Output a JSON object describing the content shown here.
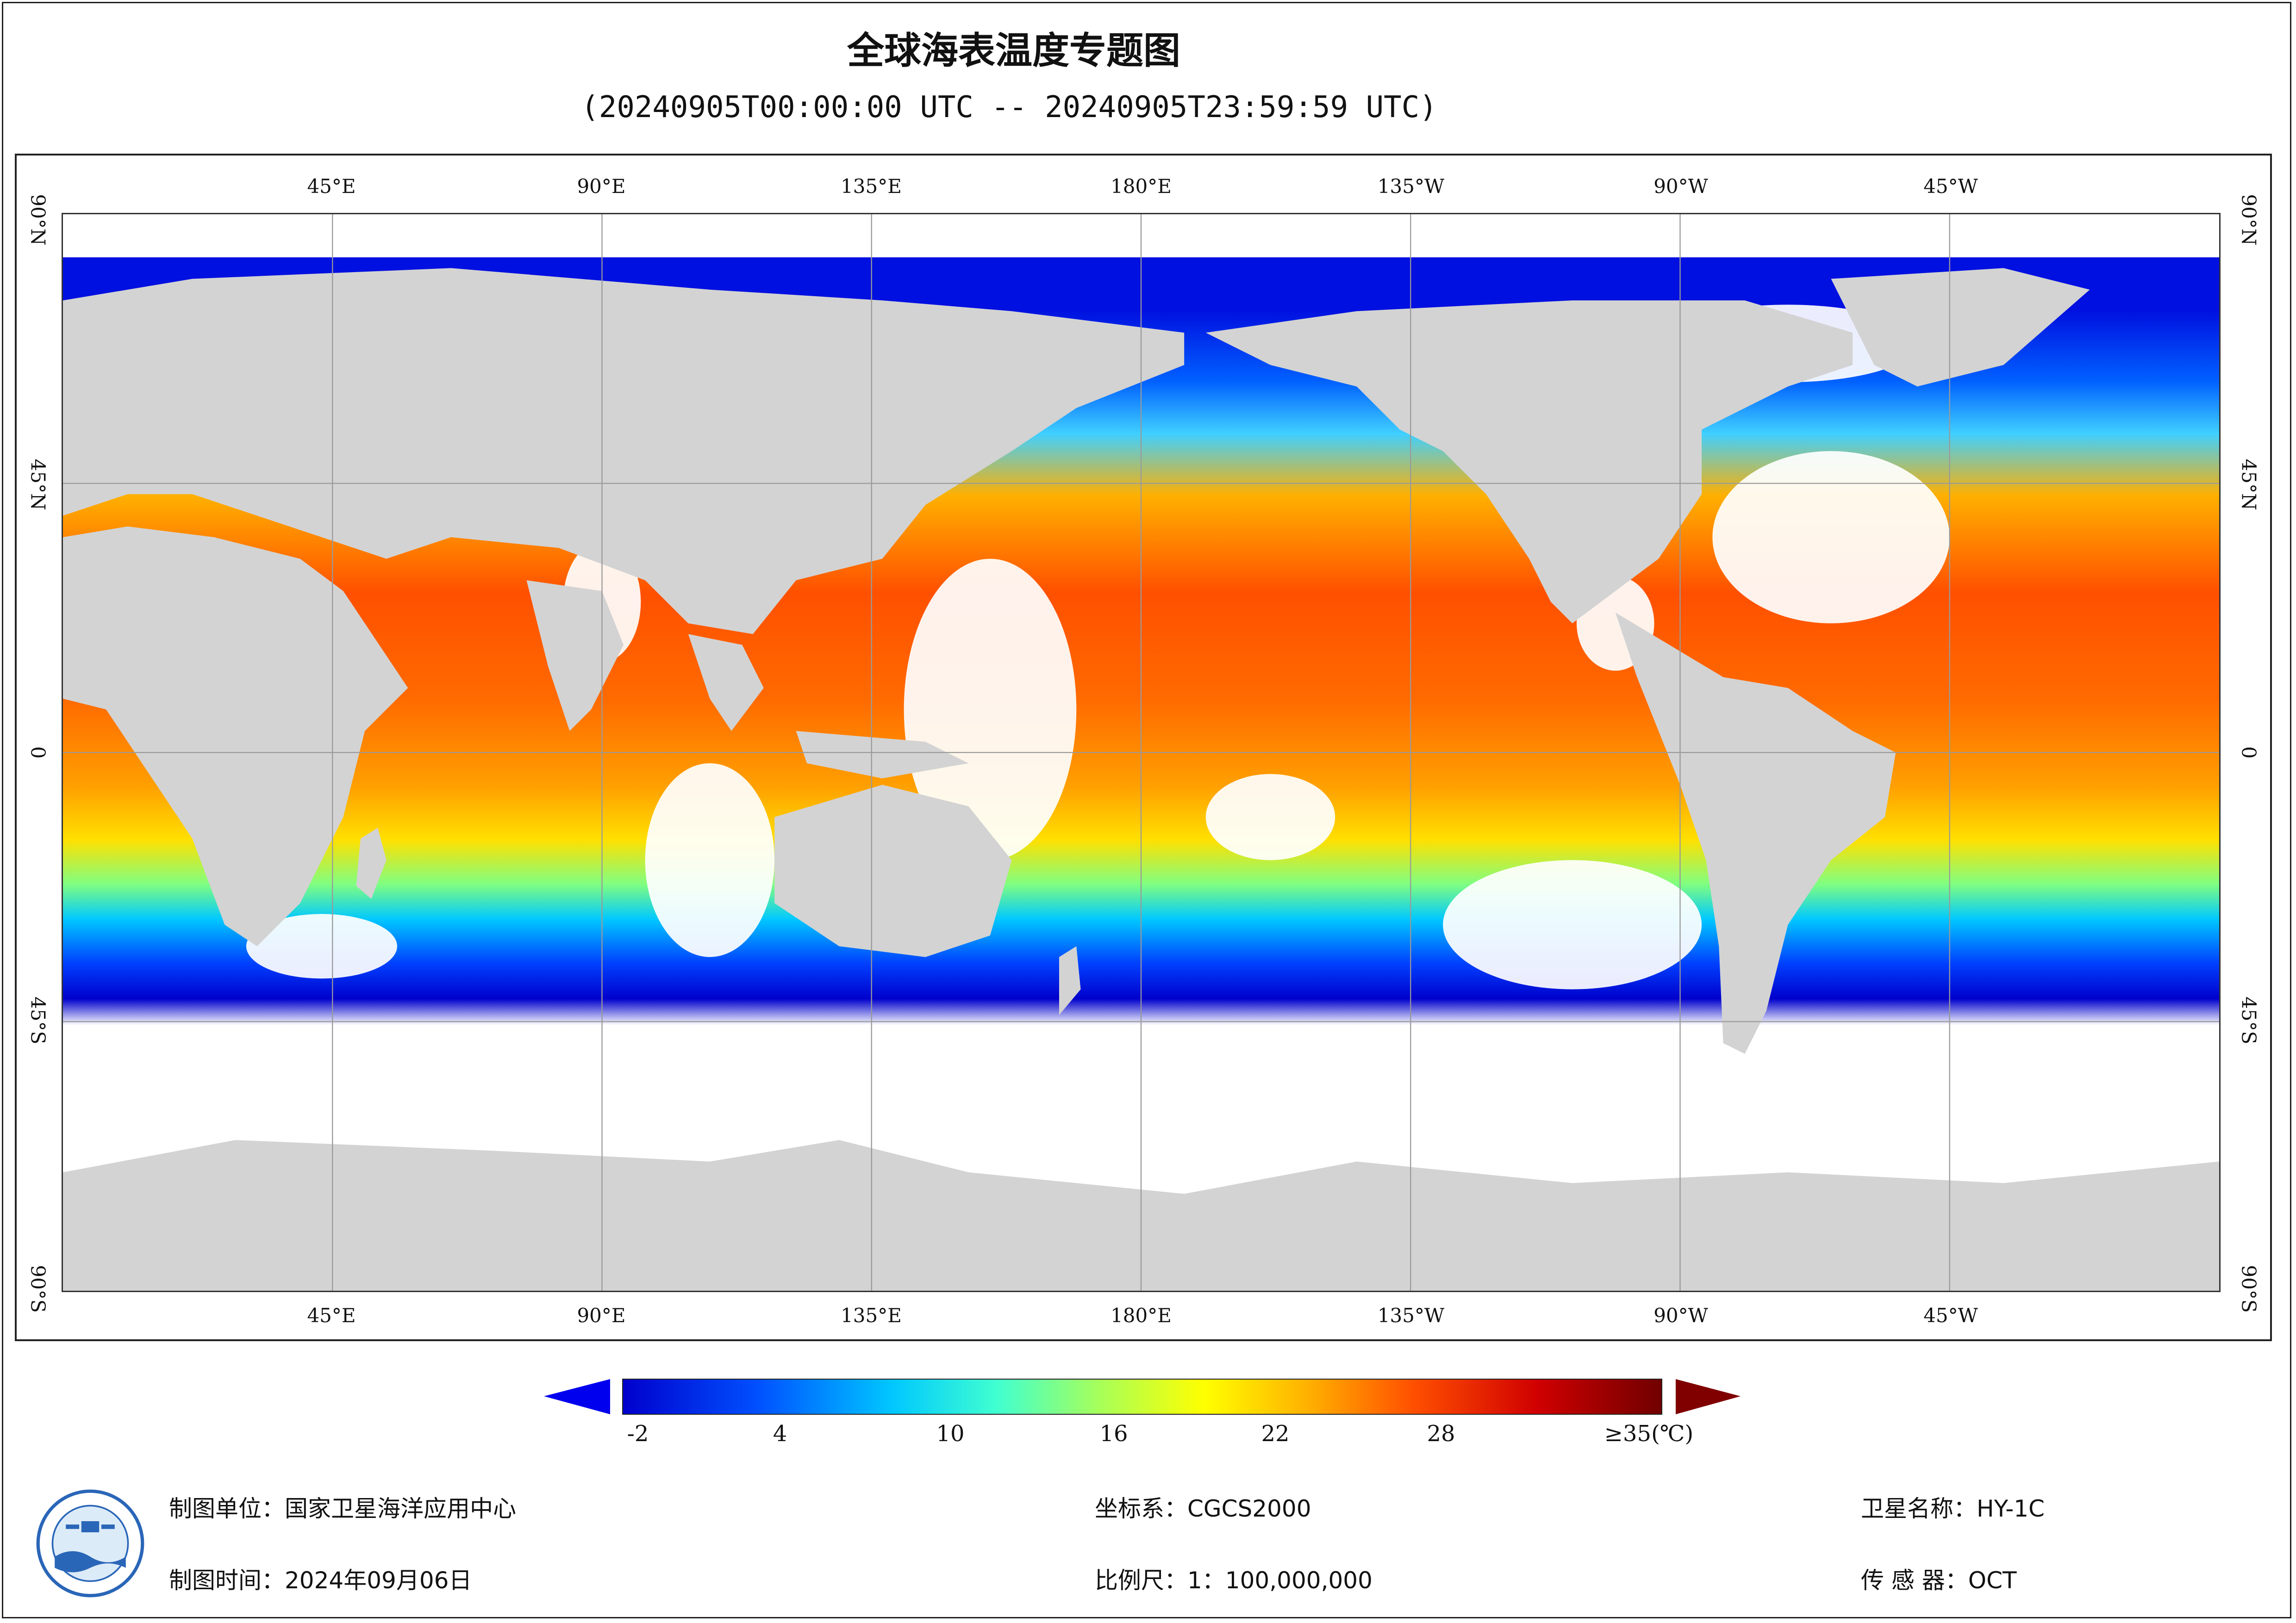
{
  "title": "全球海表温度专题图",
  "subtitle": "(20240905T00:00:00 UTC -- 20240905T23:59:59 UTC)",
  "lon_ticks": [
    "45°E",
    "90°E",
    "135°E",
    "180°E",
    "135°W",
    "90°W",
    "45°W"
  ],
  "lat_ticks": [
    "90°N",
    "45°N",
    "0",
    "45°S",
    "90°S"
  ],
  "colorbar": {
    "labels": [
      "-2",
      "4",
      "10",
      "16",
      "22",
      "28",
      "≥35(℃)"
    ],
    "colors": [
      "#0000cc",
      "#0030ff",
      "#0080ff",
      "#00c8ff",
      "#40ffd0",
      "#a0ff60",
      "#ffff00",
      "#ffc000",
      "#ff8000",
      "#ff3000",
      "#d00000",
      "#800000"
    ]
  },
  "footer": {
    "unit": "制图单位：国家卫星海洋应用中心",
    "time": "制图时间：2024年09月06日",
    "crs": "坐标系：CGCS2000",
    "scale": "比例尺：1：100,000,000",
    "satellite": "卫星名称：HY-1C",
    "sensor": "传 感 器：OCT"
  },
  "colors": {
    "land": "#d3d3d3",
    "frame": "#222222"
  }
}
